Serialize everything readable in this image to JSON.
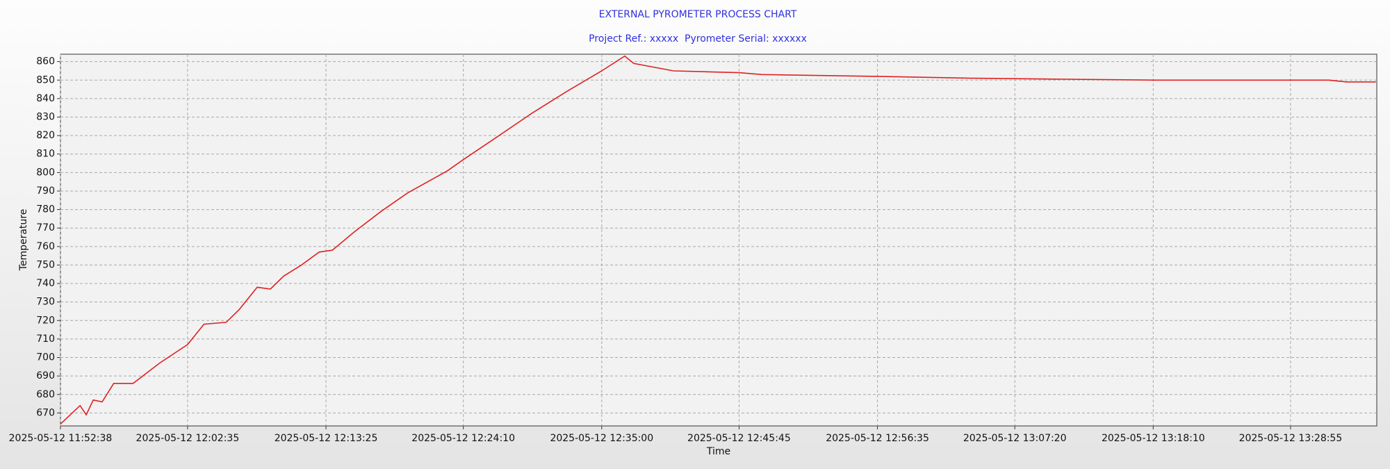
{
  "chart_data": {
    "type": "line",
    "title": "EXTERNAL PYROMETER PROCESS CHART",
    "subtitle": "Project Ref.: xxxxx  Pyrometer Serial: xxxxxx",
    "x_label": "Time",
    "y_label": "Temperature",
    "x": [
      "2025-05-12 11:52:38",
      "2025-05-12 11:54:10",
      "2025-05-12 11:54:39",
      "2025-05-12 11:55:12",
      "2025-05-12 11:55:54",
      "2025-05-12 11:56:48",
      "2025-05-12 11:58:19",
      "2025-05-12 12:00:24",
      "2025-05-12 12:02:35",
      "2025-05-12 12:03:52",
      "2025-05-12 12:05:36",
      "2025-05-12 12:06:38",
      "2025-05-12 12:08:02",
      "2025-05-12 12:09:04",
      "2025-05-12 12:10:06",
      "2025-05-12 12:11:30",
      "2025-05-12 12:12:53",
      "2025-05-12 12:13:55",
      "2025-05-12 12:15:39",
      "2025-05-12 12:17:44",
      "2025-05-12 12:19:49",
      "2025-05-12 12:22:56",
      "2025-05-12 12:24:10",
      "2025-05-12 12:26:45",
      "2025-05-12 12:29:31",
      "2025-05-12 12:32:18",
      "2025-05-12 12:35:00",
      "2025-05-12 12:36:48",
      "2025-05-12 12:37:30",
      "2025-05-12 12:40:37",
      "2025-05-12 12:45:45",
      "2025-05-12 12:47:33",
      "2025-05-12 12:56:35",
      "2025-05-12 13:04:11",
      "2025-05-12 13:18:10",
      "2025-05-12 13:31:55",
      "2025-05-12 13:33:18",
      "2025-05-12 13:35:36"
    ],
    "values": [
      664,
      674,
      669,
      677,
      676,
      686,
      686,
      697,
      707,
      718,
      719,
      726,
      738,
      737,
      744,
      750,
      757,
      758,
      768,
      779,
      789,
      801,
      807,
      819,
      832,
      844,
      855,
      863,
      859,
      855,
      854,
      853,
      852,
      851,
      850,
      850,
      849,
      849
    ],
    "color": "#e02020",
    "xlim": [
      "2025-05-12 11:52:38",
      "2025-05-12 13:35:40"
    ],
    "xticks": [
      "2025-05-12 11:52:38",
      "2025-05-12 12:02:35",
      "2025-05-12 12:13:25",
      "2025-05-12 12:24:10",
      "2025-05-12 12:35:00",
      "2025-05-12 12:45:45",
      "2025-05-12 12:56:35",
      "2025-05-12 13:07:20",
      "2025-05-12 13:18:10",
      "2025-05-12 13:28:55"
    ],
    "ylim": [
      663,
      864
    ],
    "yticks": [
      670,
      680,
      690,
      700,
      710,
      720,
      730,
      740,
      750,
      760,
      770,
      780,
      790,
      800,
      810,
      820,
      830,
      840,
      850,
      860
    ],
    "grid": true
  }
}
